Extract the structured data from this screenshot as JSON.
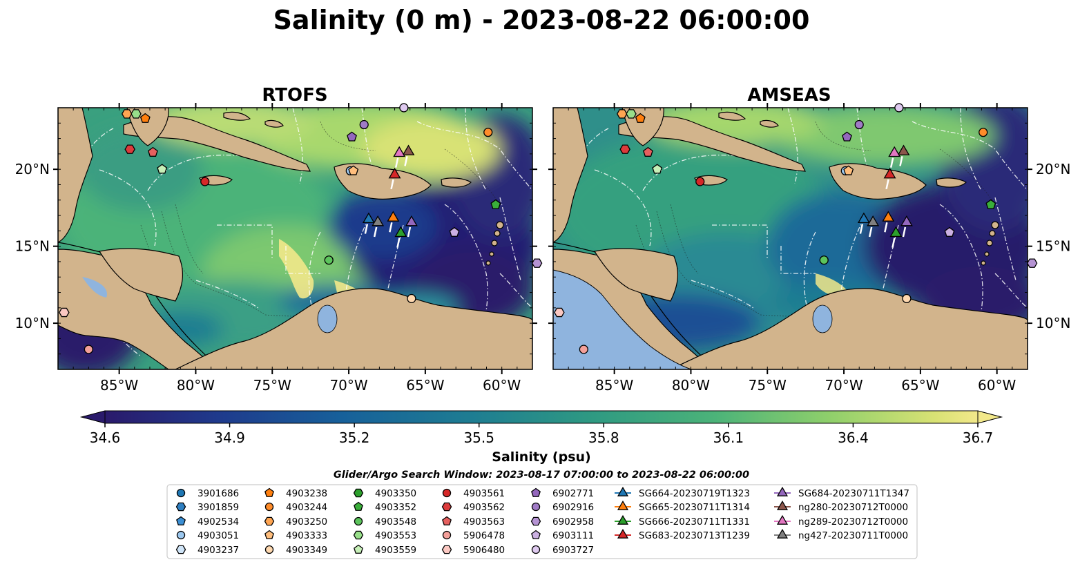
{
  "figure": {
    "title": "Salinity (0 m) - 2023-08-22 06:00:00",
    "search_window": "Glider/Argo Search Window: 2023-08-17 07:00:00 to 2023-08-22 06:00:00"
  },
  "colors": {
    "land": "#d2b48c",
    "lakes": "#8fb4de",
    "colormap": [
      "#2a1a6b",
      "#1f3a8c",
      "#17609a",
      "#1e7d92",
      "#2f9a82",
      "#4cb379",
      "#8fcf6b",
      "#d8e274",
      "#f2e88a"
    ]
  },
  "chart_data": [
    {
      "type": "heatmap",
      "title": "RTOFS",
      "xticks": [
        "85°W",
        "80°W",
        "75°W",
        "70°W",
        "65°W",
        "60°W"
      ],
      "xtick_values": [
        -85,
        -80,
        -75,
        -70,
        -65,
        -60
      ],
      "yticks": [
        "20°N",
        "15°N",
        "10°N"
      ],
      "ytick_values": [
        20,
        15,
        10
      ],
      "xlim": [
        -89,
        -58
      ],
      "ylim": [
        7,
        24
      ],
      "ytick_side": "left"
    },
    {
      "type": "heatmap",
      "title": "AMSEAS",
      "xticks": [
        "85°W",
        "80°W",
        "75°W",
        "70°W",
        "65°W",
        "60°W"
      ],
      "xtick_values": [
        -85,
        -80,
        -75,
        -70,
        -65,
        -60
      ],
      "yticks": [
        "20°N",
        "15°N",
        "10°N"
      ],
      "ytick_values": [
        20,
        15,
        10
      ],
      "xlim": [
        -89,
        -58
      ],
      "ylim": [
        7,
        24
      ],
      "ytick_side": "right"
    }
  ],
  "colorbar": {
    "label": "Salinity (psu)",
    "ticks": [
      "34.6",
      "34.9",
      "35.2",
      "35.5",
      "35.8",
      "36.1",
      "36.4",
      "36.7"
    ],
    "min": 34.6,
    "max": 36.7,
    "extend": "both"
  },
  "markers": [
    {
      "id": "3901686",
      "shape": "circle",
      "color": "#1f77b4",
      "lon": null,
      "lat": null
    },
    {
      "id": "3901859",
      "shape": "hexagon",
      "color": "#2f7fc1",
      "lon": null,
      "lat": null
    },
    {
      "id": "4902534",
      "shape": "pentagon",
      "color": "#3b8fd4",
      "lon": null,
      "lat": null
    },
    {
      "id": "4903051",
      "shape": "circle",
      "color": "#9cc8ef",
      "lon": -69.9,
      "lat": 19.9
    },
    {
      "id": "4903237",
      "shape": "hexagon",
      "color": "#cfe4f7",
      "lon": null,
      "lat": null
    },
    {
      "id": "4903238",
      "shape": "pentagon",
      "color": "#ff7f0e",
      "lon": -83.3,
      "lat": 23.3
    },
    {
      "id": "4903244",
      "shape": "circle",
      "color": "#ff8c2a",
      "lon": -60.9,
      "lat": 22.4
    },
    {
      "id": "4903250",
      "shape": "hexagon",
      "color": "#ffa552",
      "lon": -84.5,
      "lat": 23.6
    },
    {
      "id": "4903333",
      "shape": "pentagon",
      "color": "#ffbe7d",
      "lon": -69.7,
      "lat": 19.9
    },
    {
      "id": "4903349",
      "shape": "circle",
      "color": "#ffd9b0",
      "lon": -65.9,
      "lat": 11.6
    },
    {
      "id": "4903350",
      "shape": "hexagon",
      "color": "#2ca02c",
      "lon": null,
      "lat": null
    },
    {
      "id": "4903352",
      "shape": "pentagon",
      "color": "#3aae3a",
      "lon": -60.4,
      "lat": 17.7
    },
    {
      "id": "4903548",
      "shape": "circle",
      "color": "#5cc45c",
      "lon": -71.3,
      "lat": 14.1
    },
    {
      "id": "4903553",
      "shape": "hexagon",
      "color": "#98df8a",
      "lon": -83.9,
      "lat": 23.6
    },
    {
      "id": "4903559",
      "shape": "pentagon",
      "color": "#c7f0b8",
      "lon": -82.2,
      "lat": 20.0
    },
    {
      "id": "4903561",
      "shape": "circle",
      "color": "#d62728",
      "lon": -79.4,
      "lat": 19.2
    },
    {
      "id": "4903562",
      "shape": "hexagon",
      "color": "#dc3b3c",
      "lon": -84.3,
      "lat": 21.3
    },
    {
      "id": "4903563",
      "shape": "pentagon",
      "color": "#e6605f",
      "lon": -82.8,
      "lat": 21.1
    },
    {
      "id": "5906478",
      "shape": "circle",
      "color": "#f4a09a",
      "lon": -87.0,
      "lat": 8.3
    },
    {
      "id": "5906480",
      "shape": "hexagon",
      "color": "#fbc8c2",
      "lon": -88.6,
      "lat": 10.7
    },
    {
      "id": "6902771",
      "shape": "pentagon",
      "color": "#9467bd",
      "lon": -69.8,
      "lat": 22.1
    },
    {
      "id": "6902916",
      "shape": "circle",
      "color": "#a07bc6",
      "lon": -69.0,
      "lat": 22.9
    },
    {
      "id": "6902958",
      "shape": "hexagon",
      "color": "#b593d3",
      "lon": -57.7,
      "lat": 13.9
    },
    {
      "id": "6903111",
      "shape": "pentagon",
      "color": "#cbb0e2",
      "lon": -63.1,
      "lat": 15.9
    },
    {
      "id": "6903727",
      "shape": "circle",
      "color": "#dfcaf0",
      "lon": -66.4,
      "lat": 24.0
    },
    {
      "id": "SG664-20230719T1323",
      "shape": "triangle",
      "color": "#1f77b4",
      "lon": -68.7,
      "lat": 16.8
    },
    {
      "id": "SG665-20230711T1314",
      "shape": "triangle",
      "color": "#ff7f0e",
      "lon": -67.1,
      "lat": 16.9
    },
    {
      "id": "SG666-20230711T1331",
      "shape": "triangle",
      "color": "#2ca02c",
      "lon": -66.6,
      "lat": 15.9
    },
    {
      "id": "SG683-20230713T1239",
      "shape": "triangle",
      "color": "#d62728",
      "lon": -67.0,
      "lat": 19.7
    },
    {
      "id": "SG684-20230711T1347",
      "shape": "triangle",
      "color": "#9467bd",
      "lon": -65.9,
      "lat": 16.6
    },
    {
      "id": "ng280-20230712T0000",
      "shape": "triangle",
      "color": "#8c564b",
      "lon": -66.1,
      "lat": 21.2
    },
    {
      "id": "ng289-20230712T0000",
      "shape": "triangle",
      "color": "#e377c2",
      "lon": -66.7,
      "lat": 21.1
    },
    {
      "id": "ng427-20230711T0000",
      "shape": "triangle",
      "color": "#7f7f7f",
      "lon": -68.1,
      "lat": 16.6
    }
  ]
}
